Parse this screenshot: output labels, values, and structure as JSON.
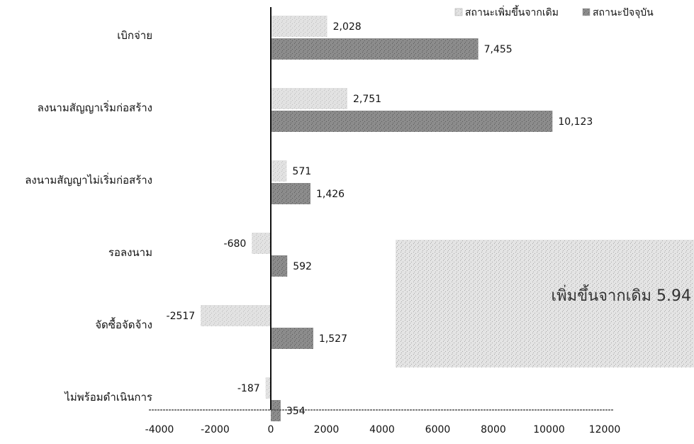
{
  "chart_data": {
    "type": "bar",
    "orientation": "horizontal",
    "categories": [
      "เบิกจ่าย",
      "ลงนามสัญญาเริ่มก่อสร้าง",
      "ลงนามสัญญาไม่เริ่มก่อสร้าง",
      "รอลงนาม",
      "จัดซื้อจัดจ้าง",
      "ไม่พร้อมดำเนินการ"
    ],
    "series": [
      {
        "name": "สถานะเพิ่มขึ้นจากเดิม",
        "values": [
          2028,
          2751,
          571,
          -680,
          -2517,
          -187
        ],
        "labels": [
          "2,028",
          "2,751",
          "571",
          "-680",
          "-2517",
          "-187"
        ],
        "color": "#e2e2e2"
      },
      {
        "name": "สถานะปัจจุบัน",
        "values": [
          7455,
          10123,
          1426,
          592,
          1527,
          354
        ],
        "labels": [
          "7,455",
          "10,123",
          "1,426",
          "592",
          "1,527",
          "354"
        ],
        "color": "#8c8c8c"
      }
    ],
    "xlim": [
      -4000,
      12000
    ],
    "xticks": [
      "-4000",
      "-2000",
      "0",
      "2000",
      "4000",
      "6000",
      "8000",
      "10000",
      "12000"
    ],
    "legend_position": "top-right",
    "annotation": "เพิ่มขึ้นจากเดิม 5.94"
  }
}
